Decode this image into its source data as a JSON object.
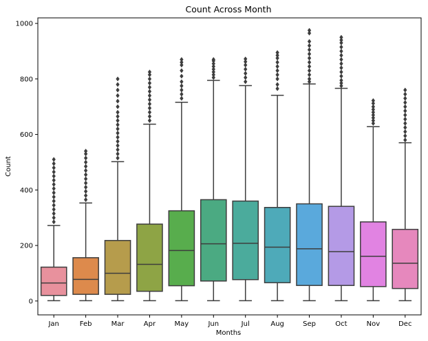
{
  "chart_data": {
    "type": "box",
    "title": "Count Across Month",
    "xlabel": "Months",
    "ylabel": "Count",
    "ylim": [
      -50,
      1020
    ],
    "yticks": [
      0,
      200,
      400,
      600,
      800,
      1000
    ],
    "grid": false,
    "categories": [
      "Jan",
      "Feb",
      "Mar",
      "Apr",
      "May",
      "Jun",
      "Jul",
      "Aug",
      "Sep",
      "Oct",
      "Nov",
      "Dec"
    ],
    "colors": [
      "#e8919d",
      "#dd8a4c",
      "#b69c4c",
      "#8ea445",
      "#58ad4d",
      "#4baa82",
      "#4bab9c",
      "#4eaab9",
      "#5aa9dc",
      "#b49ae6",
      "#e183e2",
      "#e688bd"
    ],
    "boxes": [
      {
        "label": "Jan",
        "whislo": 1,
        "q1": 20,
        "med": 65,
        "q3": 122,
        "whishi": 272,
        "outliers": [
          285,
          300,
          315,
          330,
          345,
          360,
          375,
          390,
          405,
          420,
          435,
          450,
          465,
          480,
          495,
          510
        ]
      },
      {
        "label": "Feb",
        "whislo": 1,
        "q1": 24,
        "med": 78,
        "q3": 156,
        "whishi": 353,
        "outliers": [
          365,
          380,
          395,
          410,
          425,
          440,
          455,
          470,
          485,
          500,
          515,
          530,
          540
        ]
      },
      {
        "label": "Mar",
        "whislo": 1,
        "q1": 24,
        "med": 100,
        "q3": 218,
        "whishi": 502,
        "outliers": [
          515,
          530,
          545,
          560,
          575,
          590,
          605,
          620,
          635,
          650,
          665,
          680,
          700,
          720,
          740,
          760,
          780,
          800
        ]
      },
      {
        "label": "Apr",
        "whislo": 1,
        "q1": 35,
        "med": 132,
        "q3": 277,
        "whishi": 637,
        "outliers": [
          650,
          665,
          680,
          695,
          710,
          725,
          740,
          755,
          770,
          785,
          800,
          815,
          825
        ]
      },
      {
        "label": "May",
        "whislo": 1,
        "q1": 55,
        "med": 182,
        "q3": 325,
        "whishi": 716,
        "outliers": [
          730,
          745,
          760,
          775,
          790,
          810,
          830,
          850,
          860,
          870
        ]
      },
      {
        "label": "Jun",
        "whislo": 1,
        "q1": 72,
        "med": 206,
        "q3": 365,
        "whishi": 795,
        "outliers": [
          805,
          815,
          825,
          835,
          845,
          855,
          865,
          870
        ]
      },
      {
        "label": "Jul",
        "whislo": 1,
        "q1": 77,
        "med": 208,
        "q3": 360,
        "whishi": 776,
        "outliers": [
          790,
          805,
          820,
          835,
          850,
          862,
          872
        ]
      },
      {
        "label": "Aug",
        "whislo": 1,
        "q1": 66,
        "med": 194,
        "q3": 337,
        "whishi": 741,
        "outliers": [
          765,
          780,
          800,
          815,
          830,
          845,
          860,
          875,
          885,
          895
        ]
      },
      {
        "label": "Sep",
        "whislo": 1,
        "q1": 56,
        "med": 188,
        "q3": 350,
        "whishi": 782,
        "outliers": [
          790,
          800,
          815,
          830,
          845,
          860,
          875,
          890,
          905,
          920,
          935,
          965,
          975
        ]
      },
      {
        "label": "Oct",
        "whislo": 1,
        "q1": 56,
        "med": 178,
        "q3": 341,
        "whishi": 766,
        "outliers": [
          775,
          785,
          795,
          810,
          825,
          840,
          855,
          870,
          885,
          900,
          915,
          930,
          940,
          950
        ]
      },
      {
        "label": "Nov",
        "whislo": 1,
        "q1": 52,
        "med": 161,
        "q3": 285,
        "whishi": 628,
        "outliers": [
          640,
          650,
          660,
          670,
          680,
          690,
          700,
          712,
          722
        ]
      },
      {
        "label": "Dec",
        "whislo": 1,
        "q1": 45,
        "med": 136,
        "q3": 258,
        "whishi": 570,
        "outliers": [
          580,
          595,
          610,
          625,
          640,
          655,
          670,
          685,
          700,
          715,
          730,
          745,
          760
        ]
      }
    ]
  }
}
